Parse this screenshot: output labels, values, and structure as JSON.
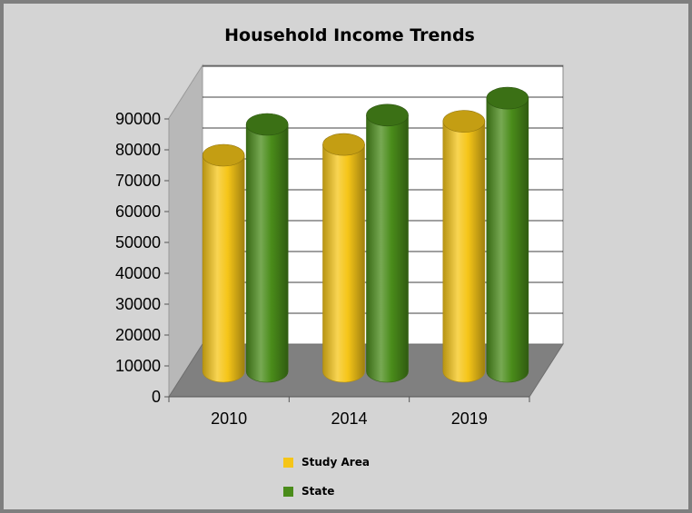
{
  "chart_data": {
    "type": "bar",
    "title": "Household Income Trends",
    "categories": [
      "2010",
      "2014",
      "2019"
    ],
    "series": [
      {
        "name": "Study Area",
        "values": [
          70000,
          73500,
          81000
        ],
        "color": "#f5c518"
      },
      {
        "name": "State",
        "values": [
          80000,
          83000,
          88500
        ],
        "color": "#4a8c1a"
      }
    ],
    "ylim": [
      0,
      90000
    ],
    "y_ticks": [
      "0",
      "10000",
      "20000",
      "30000",
      "40000",
      "50000",
      "60000",
      "70000",
      "80000",
      "90000"
    ],
    "grid": true,
    "legend": "bottom",
    "style": "3d-cylinder"
  }
}
